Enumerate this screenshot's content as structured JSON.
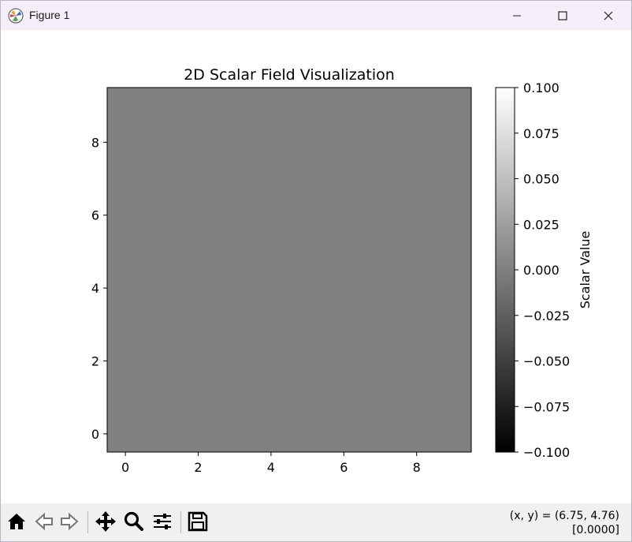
{
  "window": {
    "title": "Figure 1",
    "controls": [
      "minimize-icon",
      "maximize-icon",
      "close-icon"
    ]
  },
  "toolbar": {
    "buttons": [
      "home-icon",
      "back-icon",
      "forward-icon",
      "pan-icon",
      "zoom-icon",
      "configure-subplots-icon",
      "save-icon"
    ],
    "coords_line1": "(x, y) = (6.75, 4.76)",
    "coords_line2": "[0.0000]"
  },
  "colors": {
    "field_fill": "#808080",
    "toolbar_bg": "#f0f0f0",
    "titlebar_bg": "#f3eef7"
  },
  "chart_data": {
    "type": "heatmap",
    "title": "2D Scalar Field Visualization",
    "xlabel": "",
    "ylabel": "",
    "xlim": [
      -0.5,
      9.5
    ],
    "ylim": [
      -0.5,
      9.5
    ],
    "xticks": [
      0,
      2,
      4,
      6,
      8
    ],
    "yticks": [
      0,
      2,
      4,
      6,
      8
    ],
    "grid_size": [
      10,
      10
    ],
    "field_value": 0.0,
    "colormap": "gray",
    "colorbar": {
      "label": "Scalar Value",
      "range": [
        -0.1,
        0.1
      ],
      "ticks": [
        0.1,
        0.075,
        0.05,
        0.025,
        0.0,
        -0.025,
        -0.05,
        -0.075,
        -0.1
      ],
      "tick_labels": [
        "0.100",
        "0.075",
        "0.050",
        "0.025",
        "0.000",
        "−0.025",
        "−0.050",
        "−0.075",
        "−0.100"
      ]
    }
  }
}
